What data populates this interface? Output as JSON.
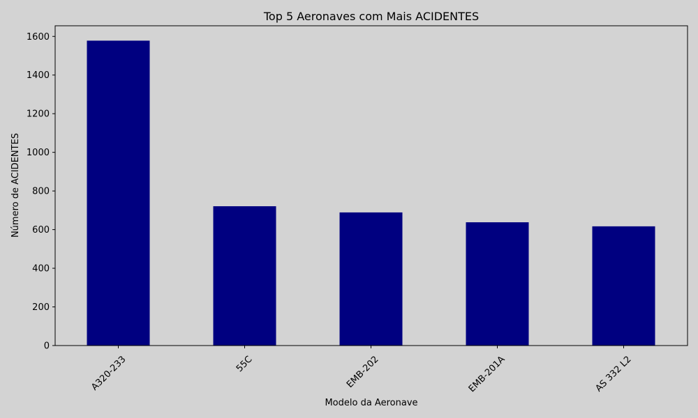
{
  "chart_data": {
    "type": "bar",
    "title": "Top 5 Aeronaves com Mais ACIDENTES",
    "xlabel": "Modelo da Aeronave",
    "ylabel": "Número de ACIDENTES",
    "categories": [
      "A320-233",
      "55C",
      "EMB-202",
      "EMB-201A",
      "AS 332 L2"
    ],
    "values": [
      1578,
      721,
      689,
      638,
      617
    ],
    "ylim": [
      0,
      1655
    ],
    "yticks": [
      0,
      200,
      400,
      600,
      800,
      1000,
      1200,
      1400,
      1600
    ],
    "bar_color": "#000080",
    "background_color": "#d3d3d3",
    "grid": false,
    "x_tick_rotation_deg": 45
  }
}
